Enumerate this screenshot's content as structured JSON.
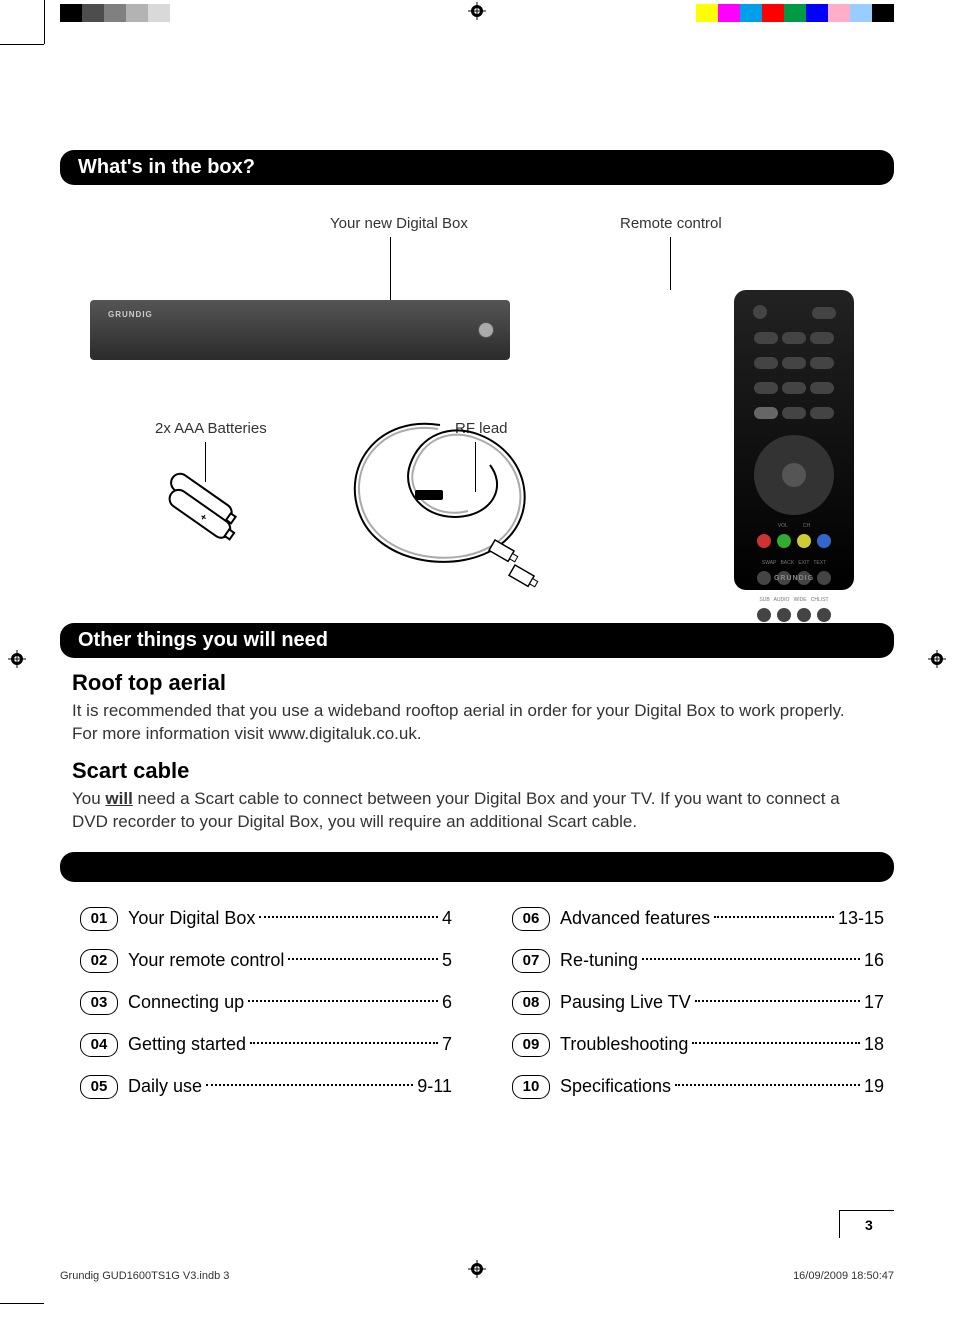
{
  "colorbar": {
    "left": [
      "#000000",
      "#4d4d4d",
      "#808080",
      "#b3b3b3",
      "#d9d9d9",
      "#ffffff",
      "#ffffff"
    ],
    "right": [
      "#ffff00",
      "#ff00ff",
      "#00a0e9",
      "#ff0000",
      "#009944",
      "#0000ff",
      "#ffaec9",
      "#99ccff",
      "#000000"
    ],
    "sw_w": 22
  },
  "sections": {
    "box_header": "What's in the box?",
    "other_header": "Other things you will need"
  },
  "labels": {
    "digital_box": "Your new Digital Box",
    "remote": "Remote control",
    "batteries": "2x AAA Batteries",
    "rf_lead": "RF lead",
    "brand": "GRUNDIG"
  },
  "other": {
    "h1": "Roof top aerial",
    "p1": "It is recommended that you use a wideband rooftop aerial in order for your Digital Box to work properly. For more information visit www.digitaluk.co.uk.",
    "h2": "Scart cable",
    "p2a": "You ",
    "p2will": "will",
    "p2b": " need a Scart cable to connect between your Digital Box and your TV. If you want to connect a DVD recorder to your Digital Box, you will require an additional Scart cable."
  },
  "toc_left": [
    {
      "num": "01",
      "title": "Your Digital Box",
      "page": "4"
    },
    {
      "num": "02",
      "title": "Your remote control",
      "page": "5"
    },
    {
      "num": "03",
      "title": "Connecting up",
      "page": "6"
    },
    {
      "num": "04",
      "title": "Getting started",
      "page": "7"
    },
    {
      "num": "05",
      "title": "Daily use",
      "page": "9-11"
    }
  ],
  "toc_right": [
    {
      "num": "06",
      "title": "Advanced features",
      "page": "13-15"
    },
    {
      "num": "07",
      "title": "Re-tuning",
      "page": "16"
    },
    {
      "num": "08",
      "title": "Pausing Live TV",
      "page": "17"
    },
    {
      "num": "09",
      "title": "Troubleshooting",
      "page": "18"
    },
    {
      "num": "10",
      "title": "Specifications",
      "page": "19"
    }
  ],
  "page_number": "3",
  "footer": {
    "file": "Grundig GUD1600TS1G V3.indb   3",
    "datetime": "16/09/2009   18:50:47"
  },
  "remote_colors": [
    "#cc3333",
    "#33aa33",
    "#cccc33",
    "#3366cc"
  ]
}
